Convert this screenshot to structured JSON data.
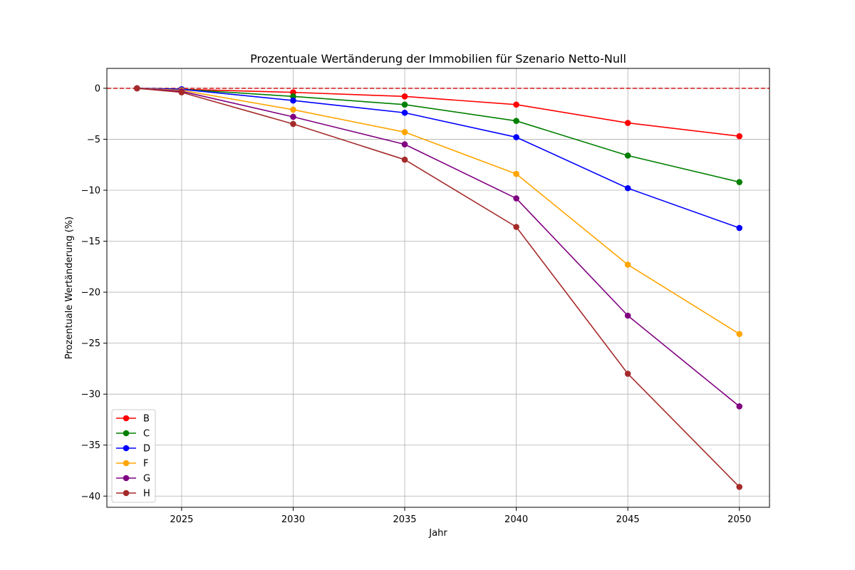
{
  "chart_data": {
    "type": "line",
    "title": "Prozentuale Wertänderung der Immobilien für Szenario Netto-Null",
    "xlabel": "Jahr",
    "ylabel": "Prozentuale Wertänderung (%)",
    "x": [
      2023,
      2025,
      2030,
      2035,
      2040,
      2045,
      2050
    ],
    "xticks": [
      2025,
      2030,
      2035,
      2040,
      2045,
      2050
    ],
    "yticks": [
      0,
      -5,
      -10,
      -15,
      -20,
      -25,
      -30,
      -35,
      -40
    ],
    "xlim": [
      2021.65,
      2051.35
    ],
    "ylim": [
      -41.1,
      1.95
    ],
    "grid": true,
    "legend_position": "lower-left",
    "reference_line": {
      "y": 0,
      "color": "#d62728",
      "style": "dashed"
    },
    "series": [
      {
        "name": "B",
        "color": "#ff0000",
        "values": [
          0,
          -0.1,
          -0.4,
          -0.8,
          -1.6,
          -3.4,
          -4.7
        ]
      },
      {
        "name": "C",
        "color": "#008000",
        "values": [
          0,
          -0.1,
          -0.8,
          -1.6,
          -3.2,
          -6.6,
          -9.2
        ]
      },
      {
        "name": "D",
        "color": "#0000ff",
        "values": [
          0,
          -0.1,
          -1.2,
          -2.4,
          -4.8,
          -9.8,
          -13.7
        ]
      },
      {
        "name": "F",
        "color": "#ffa500",
        "values": [
          0,
          -0.2,
          -2.1,
          -4.3,
          -8.4,
          -17.3,
          -24.1
        ]
      },
      {
        "name": "G",
        "color": "#800080",
        "values": [
          0,
          -0.3,
          -2.8,
          -5.5,
          -10.8,
          -22.3,
          -31.2
        ]
      },
      {
        "name": "H",
        "color": "#a52a2a",
        "values": [
          0,
          -0.4,
          -3.5,
          -7.0,
          -13.6,
          -28.0,
          -39.1
        ]
      }
    ]
  }
}
